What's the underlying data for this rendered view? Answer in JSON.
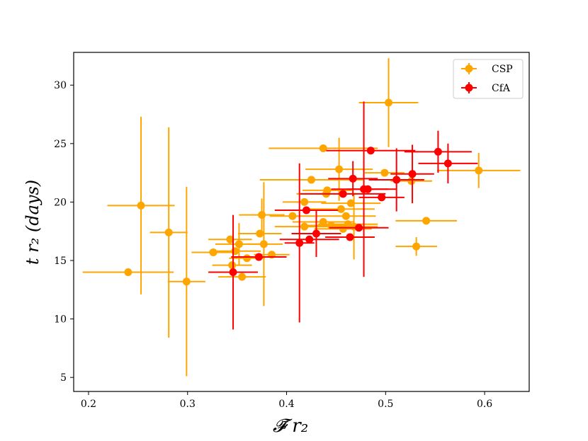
{
  "chart_data": {
    "type": "scatter",
    "title": "",
    "xlabel": "𝓕̄ r₂",
    "ylabel": "t r₂ (days)",
    "xlim": [
      0.185,
      0.645
    ],
    "ylim": [
      3.8,
      32.8
    ],
    "x_ticks": [
      0.2,
      0.3,
      0.4,
      0.5,
      0.6
    ],
    "x_tick_labels": [
      "0.2",
      "0.3",
      "0.4",
      "0.5",
      "0.6"
    ],
    "y_ticks": [
      5,
      10,
      15,
      20,
      25,
      30
    ],
    "y_tick_labels": [
      "5",
      "10",
      "15",
      "20",
      "25",
      "30"
    ],
    "grid": false,
    "legend_position": "top-right",
    "series": [
      {
        "name": "CSP",
        "color": "#ffa500",
        "points": [
          {
            "x": 0.24,
            "y": 14.0,
            "xerr": 0.046,
            "yerr": 0.0
          },
          {
            "x": 0.253,
            "y": 19.7,
            "xerr": 0.034,
            "yerr": 7.6
          },
          {
            "x": 0.281,
            "y": 17.4,
            "xerr": 0.019,
            "yerr": 9.0
          },
          {
            "x": 0.299,
            "y": 13.2,
            "xerr": 0.019,
            "yerr": 8.1
          },
          {
            "x": 0.326,
            "y": 15.7,
            "xerr": 0.022,
            "yerr": 0.0
          },
          {
            "x": 0.343,
            "y": 16.8,
            "xerr": 0.022,
            "yerr": 0.0
          },
          {
            "x": 0.345,
            "y": 14.6,
            "xerr": 0.02,
            "yerr": 0.0
          },
          {
            "x": 0.348,
            "y": 15.8,
            "xerr": 0.026,
            "yerr": 0.0
          },
          {
            "x": 0.352,
            "y": 16.4,
            "xerr": 0.024,
            "yerr": 1.8
          },
          {
            "x": 0.355,
            "y": 13.6,
            "xerr": 0.024,
            "yerr": 0.0
          },
          {
            "x": 0.36,
            "y": 15.2,
            "xerr": 0.018,
            "yerr": 0.0
          },
          {
            "x": 0.373,
            "y": 17.3,
            "xerr": 0.022,
            "yerr": 0.0
          },
          {
            "x": 0.375,
            "y": 18.9,
            "xerr": 0.023,
            "yerr": 1.4
          },
          {
            "x": 0.377,
            "y": 16.4,
            "xerr": 0.019,
            "yerr": 5.3
          },
          {
            "x": 0.385,
            "y": 15.5,
            "xerr": 0.018,
            "yerr": 0.0
          },
          {
            "x": 0.406,
            "y": 18.8,
            "xerr": 0.023,
            "yerr": 0.0
          },
          {
            "x": 0.418,
            "y": 20.0,
            "xerr": 0.022,
            "yerr": 0.0
          },
          {
            "x": 0.418,
            "y": 17.9,
            "xerr": 0.03,
            "yerr": 0.0
          },
          {
            "x": 0.425,
            "y": 21.9,
            "xerr": 0.052,
            "yerr": 0.0
          },
          {
            "x": 0.437,
            "y": 24.6,
            "xerr": 0.055,
            "yerr": 0.0
          },
          {
            "x": 0.437,
            "y": 18.3,
            "xerr": 0.031,
            "yerr": 0.0
          },
          {
            "x": 0.44,
            "y": 20.7,
            "xerr": 0.03,
            "yerr": 0.0
          },
          {
            "x": 0.441,
            "y": 21.0,
            "xerr": 0.025,
            "yerr": 0.0
          },
          {
            "x": 0.445,
            "y": 18.0,
            "xerr": 0.028,
            "yerr": 0.0
          },
          {
            "x": 0.453,
            "y": 22.8,
            "xerr": 0.034,
            "yerr": 2.7
          },
          {
            "x": 0.455,
            "y": 19.4,
            "xerr": 0.034,
            "yerr": 0.0
          },
          {
            "x": 0.457,
            "y": 17.7,
            "xerr": 0.029,
            "yerr": 0.0
          },
          {
            "x": 0.46,
            "y": 18.8,
            "xerr": 0.03,
            "yerr": 0.0
          },
          {
            "x": 0.462,
            "y": 18.1,
            "xerr": 0.03,
            "yerr": 0.0
          },
          {
            "x": 0.465,
            "y": 19.9,
            "xerr": 0.03,
            "yerr": 0.0
          },
          {
            "x": 0.468,
            "y": 17.9,
            "xerr": 0.024,
            "yerr": 2.8
          },
          {
            "x": 0.499,
            "y": 22.5,
            "xerr": 0.02,
            "yerr": 0.0
          },
          {
            "x": 0.503,
            "y": 28.5,
            "xerr": 0.03,
            "yerr": 3.8
          },
          {
            "x": 0.526,
            "y": 21.8,
            "xerr": 0.021,
            "yerr": 0.0
          },
          {
            "x": 0.531,
            "y": 16.2,
            "xerr": 0.021,
            "yerr": 0.8
          },
          {
            "x": 0.541,
            "y": 18.4,
            "xerr": 0.031,
            "yerr": 0.0
          },
          {
            "x": 0.594,
            "y": 22.7,
            "xerr": 0.042,
            "yerr": 1.5
          }
        ]
      },
      {
        "name": "CfA",
        "color": "#ff0000",
        "points": [
          {
            "x": 0.346,
            "y": 14.0,
            "xerr": 0.025,
            "yerr": 4.9
          },
          {
            "x": 0.372,
            "y": 15.3,
            "xerr": 0.028,
            "yerr": 0.0
          },
          {
            "x": 0.413,
            "y": 16.5,
            "xerr": 0.015,
            "yerr": 6.8
          },
          {
            "x": 0.42,
            "y": 19.3,
            "xerr": 0.032,
            "yerr": 0.0
          },
          {
            "x": 0.423,
            "y": 16.8,
            "xerr": 0.03,
            "yerr": 0.0
          },
          {
            "x": 0.43,
            "y": 17.3,
            "xerr": 0.025,
            "yerr": 2.0
          },
          {
            "x": 0.457,
            "y": 20.7,
            "xerr": 0.043,
            "yerr": 0.0
          },
          {
            "x": 0.464,
            "y": 17.0,
            "xerr": 0.025,
            "yerr": 0.0
          },
          {
            "x": 0.467,
            "y": 22.0,
            "xerr": 0.025,
            "yerr": 1.5
          },
          {
            "x": 0.473,
            "y": 17.8,
            "xerr": 0.03,
            "yerr": 0.0
          },
          {
            "x": 0.478,
            "y": 21.1,
            "xerr": 0.033,
            "yerr": 7.5
          },
          {
            "x": 0.482,
            "y": 21.1,
            "xerr": 0.021,
            "yerr": 0.0
          },
          {
            "x": 0.485,
            "y": 24.4,
            "xerr": 0.045,
            "yerr": 0.0
          },
          {
            "x": 0.496,
            "y": 20.4,
            "xerr": 0.023,
            "yerr": 0.0
          },
          {
            "x": 0.511,
            "y": 21.9,
            "xerr": 0.028,
            "yerr": 2.7
          },
          {
            "x": 0.527,
            "y": 22.4,
            "xerr": 0.022,
            "yerr": 2.5
          },
          {
            "x": 0.553,
            "y": 24.3,
            "xerr": 0.034,
            "yerr": 1.8
          },
          {
            "x": 0.563,
            "y": 23.3,
            "xerr": 0.03,
            "yerr": 1.7
          }
        ]
      }
    ]
  }
}
